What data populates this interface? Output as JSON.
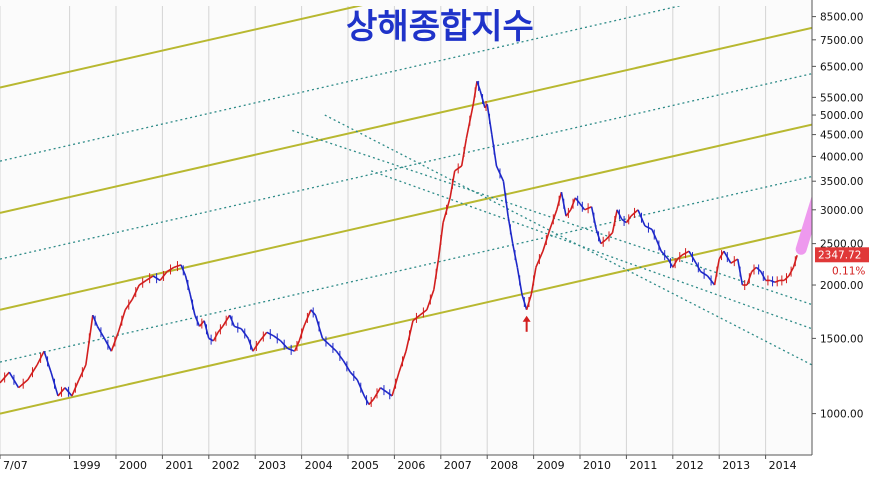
{
  "chart_data": {
    "type": "candlestick-line",
    "title": "상해종합지수",
    "y_scale": "log",
    "ylim": [
      800,
      9000
    ],
    "xlim": [
      "1997-07",
      "2014-12"
    ],
    "y_ticks": [
      {
        "v": 8500,
        "t": "8500.00"
      },
      {
        "v": 7500,
        "t": "7500.00"
      },
      {
        "v": 6500,
        "t": "6500.00"
      },
      {
        "v": 5500,
        "t": "5500.00"
      },
      {
        "v": 5000,
        "t": "5000.00"
      },
      {
        "v": 4500,
        "t": "4500.00"
      },
      {
        "v": 4000,
        "t": "4000.00"
      },
      {
        "v": 3500,
        "t": "3500.00"
      },
      {
        "v": 3000,
        "t": "3000.00"
      },
      {
        "v": 2500,
        "t": "2500.00"
      },
      {
        "v": 2000,
        "t": "2000.00"
      },
      {
        "v": 1500,
        "t": "1500.00"
      },
      {
        "v": 1000,
        "t": "1000.00"
      }
    ],
    "x_ticks": [
      {
        "v": 1997.5,
        "t": "7/07"
      },
      {
        "v": 1999.0,
        "t": "1999"
      },
      {
        "v": 2000.0,
        "t": "2000"
      },
      {
        "v": 2001.0,
        "t": "2001"
      },
      {
        "v": 2002.0,
        "t": "2002"
      },
      {
        "v": 2003.0,
        "t": "2003"
      },
      {
        "v": 2004.0,
        "t": "2004"
      },
      {
        "v": 2005.0,
        "t": "2005"
      },
      {
        "v": 2006.0,
        "t": "2006"
      },
      {
        "v": 2007.0,
        "t": "2007"
      },
      {
        "v": 2008.0,
        "t": "2008"
      },
      {
        "v": 2009.0,
        "t": "2009"
      },
      {
        "v": 2010.0,
        "t": "2010"
      },
      {
        "v": 2011.0,
        "t": "2011"
      },
      {
        "v": 2012.0,
        "t": "2012"
      },
      {
        "v": 2013.0,
        "t": "2013"
      },
      {
        "v": 2014.0,
        "t": "2014"
      }
    ],
    "series": [
      {
        "values": [
          [
            1997.5,
            1180
          ],
          [
            1997.7,
            1250
          ],
          [
            1997.9,
            1150
          ],
          [
            1998.1,
            1200
          ],
          [
            1998.3,
            1300
          ],
          [
            1998.45,
            1400
          ],
          [
            1998.6,
            1250
          ],
          [
            1998.75,
            1100
          ],
          [
            1998.9,
            1150
          ],
          [
            1999.05,
            1100
          ],
          [
            1999.2,
            1200
          ],
          [
            1999.35,
            1300
          ],
          [
            1999.5,
            1700
          ],
          [
            1999.6,
            1600
          ],
          [
            1999.75,
            1500
          ],
          [
            1999.9,
            1400
          ],
          [
            2000.05,
            1550
          ],
          [
            2000.2,
            1750
          ],
          [
            2000.35,
            1850
          ],
          [
            2000.5,
            2000
          ],
          [
            2000.65,
            2050
          ],
          [
            2000.8,
            2100
          ],
          [
            2000.95,
            2050
          ],
          [
            2001.1,
            2150
          ],
          [
            2001.25,
            2200
          ],
          [
            2001.4,
            2230
          ],
          [
            2001.5,
            2100
          ],
          [
            2001.6,
            1900
          ],
          [
            2001.7,
            1700
          ],
          [
            2001.8,
            1600
          ],
          [
            2001.9,
            1650
          ],
          [
            2002.0,
            1500
          ],
          [
            2002.1,
            1480
          ],
          [
            2002.2,
            1550
          ],
          [
            2002.3,
            1600
          ],
          [
            2002.45,
            1700
          ],
          [
            2002.55,
            1600
          ],
          [
            2002.7,
            1580
          ],
          [
            2002.85,
            1500
          ],
          [
            2002.95,
            1400
          ],
          [
            2003.1,
            1480
          ],
          [
            2003.25,
            1550
          ],
          [
            2003.4,
            1520
          ],
          [
            2003.55,
            1480
          ],
          [
            2003.7,
            1420
          ],
          [
            2003.85,
            1400
          ],
          [
            2003.95,
            1480
          ],
          [
            2004.05,
            1600
          ],
          [
            2004.2,
            1750
          ],
          [
            2004.3,
            1700
          ],
          [
            2004.45,
            1500
          ],
          [
            2004.6,
            1450
          ],
          [
            2004.75,
            1400
          ],
          [
            2004.9,
            1330
          ],
          [
            2005.05,
            1250
          ],
          [
            2005.2,
            1200
          ],
          [
            2005.35,
            1100
          ],
          [
            2005.45,
            1050
          ],
          [
            2005.55,
            1080
          ],
          [
            2005.7,
            1150
          ],
          [
            2005.85,
            1120
          ],
          [
            2005.95,
            1100
          ],
          [
            2006.1,
            1250
          ],
          [
            2006.25,
            1400
          ],
          [
            2006.4,
            1650
          ],
          [
            2006.55,
            1700
          ],
          [
            2006.7,
            1750
          ],
          [
            2006.85,
            1950
          ],
          [
            2006.95,
            2300
          ],
          [
            2007.05,
            2800
          ],
          [
            2007.2,
            3200
          ],
          [
            2007.3,
            3700
          ],
          [
            2007.45,
            3800
          ],
          [
            2007.55,
            4400
          ],
          [
            2007.7,
            5300
          ],
          [
            2007.78,
            6000
          ],
          [
            2007.85,
            5700
          ],
          [
            2007.95,
            5200
          ],
          [
            2008.0,
            5300
          ],
          [
            2008.1,
            4500
          ],
          [
            2008.2,
            3800
          ],
          [
            2008.35,
            3500
          ],
          [
            2008.45,
            2900
          ],
          [
            2008.55,
            2500
          ],
          [
            2008.65,
            2200
          ],
          [
            2008.75,
            1900
          ],
          [
            2008.85,
            1750
          ],
          [
            2008.95,
            1900
          ],
          [
            2009.05,
            2200
          ],
          [
            2009.2,
            2400
          ],
          [
            2009.35,
            2700
          ],
          [
            2009.5,
            3000
          ],
          [
            2009.6,
            3300
          ],
          [
            2009.7,
            2900
          ],
          [
            2009.8,
            3000
          ],
          [
            2009.9,
            3200
          ],
          [
            2010.0,
            3100
          ],
          [
            2010.1,
            3000
          ],
          [
            2010.25,
            3050
          ],
          [
            2010.35,
            2700
          ],
          [
            2010.45,
            2500
          ],
          [
            2010.55,
            2550
          ],
          [
            2010.7,
            2650
          ],
          [
            2010.8,
            3000
          ],
          [
            2010.9,
            2850
          ],
          [
            2011.0,
            2800
          ],
          [
            2011.1,
            2900
          ],
          [
            2011.25,
            3000
          ],
          [
            2011.4,
            2750
          ],
          [
            2011.55,
            2700
          ],
          [
            2011.65,
            2550
          ],
          [
            2011.75,
            2400
          ],
          [
            2011.9,
            2300
          ],
          [
            2012.0,
            2200
          ],
          [
            2012.1,
            2300
          ],
          [
            2012.2,
            2350
          ],
          [
            2012.35,
            2400
          ],
          [
            2012.5,
            2250
          ],
          [
            2012.6,
            2150
          ],
          [
            2012.75,
            2100
          ],
          [
            2012.9,
            2000
          ],
          [
            2013.0,
            2300
          ],
          [
            2013.1,
            2400
          ],
          [
            2013.25,
            2250
          ],
          [
            2013.4,
            2300
          ],
          [
            2013.5,
            2000
          ],
          [
            2013.6,
            2000
          ],
          [
            2013.7,
            2150
          ],
          [
            2013.8,
            2200
          ],
          [
            2013.9,
            2150
          ],
          [
            2014.0,
            2050
          ],
          [
            2014.1,
            2050
          ],
          [
            2014.2,
            2030
          ],
          [
            2014.3,
            2050
          ],
          [
            2014.4,
            2050
          ],
          [
            2014.5,
            2100
          ],
          [
            2014.6,
            2200
          ],
          [
            2014.68,
            2347.72
          ]
        ]
      }
    ],
    "trend_lines": [
      {
        "kind": "solid",
        "color": "#b8b830",
        "a": [
          1997.5,
          1000
        ],
        "b": [
          2015.0,
          2720
        ]
      },
      {
        "kind": "solid",
        "color": "#b8b830",
        "a": [
          1997.5,
          1750
        ],
        "b": [
          2015.0,
          4750
        ]
      },
      {
        "kind": "solid",
        "color": "#b8b830",
        "a": [
          1997.5,
          2950
        ],
        "b": [
          2015.0,
          8000
        ]
      },
      {
        "kind": "solid",
        "color": "#b8b830",
        "a": [
          1997.5,
          5800
        ],
        "b": [
          2015.0,
          15700
        ]
      },
      {
        "kind": "dotted",
        "color": "#2e8b88",
        "a": [
          1997.5,
          1320
        ],
        "b": [
          2015.0,
          3590
        ]
      },
      {
        "kind": "dotted",
        "color": "#2e8b88",
        "a": [
          1997.5,
          2300
        ],
        "b": [
          2015.0,
          6250
        ]
      },
      {
        "kind": "dotted",
        "color": "#2e8b88",
        "a": [
          1997.5,
          3900
        ],
        "b": [
          2015.0,
          10600
        ]
      },
      {
        "kind": "dotted",
        "color": "#2e8b88",
        "a": [
          2004.5,
          5000
        ],
        "b": [
          2015.0,
          1300
        ]
      },
      {
        "kind": "dotted",
        "color": "#2e8b88",
        "a": [
          2003.8,
          4600
        ],
        "b": [
          2015.0,
          1800
        ]
      },
      {
        "kind": "dotted",
        "color": "#2e8b88",
        "a": [
          2005.5,
          3700
        ],
        "b": [
          2015.0,
          1580
        ]
      }
    ],
    "current_value": "2347.72",
    "current_value_y": 2347.72,
    "change_pct": "0.11%",
    "forecast_arrow": {
      "color": "#ee99ee",
      "from": [
        2014.68,
        2347.72
      ],
      "to": [
        2016.2,
        7800
      ]
    },
    "low_marker": {
      "color": "#d21e1e",
      "x": 2008.85,
      "y": 1750
    },
    "colors": {
      "up": "#d21e1e",
      "down": "#1e28c8",
      "price_label_bg": "#e03838",
      "pct_text": "#d21e1e"
    }
  }
}
